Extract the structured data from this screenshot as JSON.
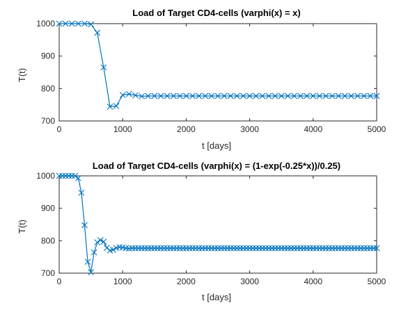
{
  "chart_data": [
    {
      "type": "line",
      "title": "Load of Target CD4-cells (varphi(x) = x)",
      "xlabel": "t [days]",
      "ylabel": "T(t)",
      "xlim": [
        0,
        5000
      ],
      "ylim": [
        700,
        1000
      ],
      "xticks": [
        0,
        1000,
        2000,
        3000,
        4000,
        5000
      ],
      "yticks": [
        700,
        800,
        900,
        1000
      ],
      "grid": false,
      "legend": "none",
      "color": "#0072BD",
      "series": [
        {
          "marker": "x",
          "x": [
            0,
            100,
            200,
            300,
            400,
            500,
            600,
            700,
            800,
            900,
            1000,
            1100,
            1200,
            1300,
            1400,
            1500,
            1600,
            1700,
            1800,
            1900,
            2000,
            2100,
            2200,
            2300,
            2400,
            2500,
            2600,
            2700,
            2800,
            2900,
            3000,
            3100,
            3200,
            3300,
            3400,
            3500,
            3600,
            3700,
            3800,
            3900,
            4000,
            4100,
            4200,
            4300,
            4400,
            4500,
            4600,
            4700,
            4800,
            4900,
            5000
          ],
          "y": [
            1000,
            1000,
            1000,
            1000,
            1000,
            998,
            972,
            865,
            744,
            746,
            780,
            783,
            779,
            776,
            777,
            777,
            777,
            777,
            777,
            777,
            777,
            777,
            777,
            777,
            777,
            777,
            777,
            777,
            777,
            777,
            777,
            777,
            777,
            777,
            777,
            777,
            777,
            777,
            777,
            777,
            777,
            777,
            777,
            777,
            777,
            777,
            777,
            777,
            777,
            777,
            777
          ]
        }
      ]
    },
    {
      "type": "line",
      "title": "Load of Target CD4-cells (varphi(x) = (1-exp(-0.25*x))/0.25)",
      "xlabel": "t [days]",
      "ylabel": "T(t)",
      "xlim": [
        0,
        5000
      ],
      "ylim": [
        700,
        1000
      ],
      "xticks": [
        0,
        1000,
        2000,
        3000,
        4000,
        5000
      ],
      "yticks": [
        700,
        800,
        900,
        1000
      ],
      "grid": false,
      "legend": "none",
      "color": "#0072BD",
      "series": [
        {
          "marker": "x",
          "x": [
            0,
            50,
            100,
            150,
            200,
            250,
            300,
            350,
            400,
            450,
            500,
            550,
            600,
            650,
            700,
            750,
            800,
            850,
            900,
            950,
            1000,
            1050,
            1100,
            1150,
            1200,
            1250,
            1300,
            1350,
            1400,
            1450,
            1500,
            1550,
            1600,
            1650,
            1700,
            1750,
            1800,
            1850,
            1900,
            1950,
            2000,
            2050,
            2100,
            2150,
            2200,
            2250,
            2300,
            2350,
            2400,
            2450,
            2500,
            2550,
            2600,
            2650,
            2700,
            2750,
            2800,
            2850,
            2900,
            2950,
            3000,
            3050,
            3100,
            3150,
            3200,
            3250,
            3300,
            3350,
            3400,
            3450,
            3500,
            3550,
            3600,
            3650,
            3700,
            3750,
            3800,
            3850,
            3900,
            3950,
            4000,
            4050,
            4100,
            4150,
            4200,
            4250,
            4300,
            4350,
            4400,
            4450,
            4500,
            4550,
            4600,
            4650,
            4700,
            4750,
            4800,
            4850,
            4900,
            4950,
            5000
          ],
          "y": [
            1000,
            1000,
            1000,
            1000,
            1000,
            1000,
            993,
            948,
            848,
            735,
            703,
            764,
            795,
            802,
            797,
            778,
            770,
            772,
            778,
            780,
            779,
            777,
            776,
            777,
            777,
            777,
            777,
            777,
            777,
            777,
            777,
            777,
            777,
            777,
            777,
            777,
            777,
            777,
            777,
            777,
            777,
            777,
            777,
            777,
            777,
            777,
            777,
            777,
            777,
            777,
            777,
            777,
            777,
            777,
            777,
            777,
            777,
            777,
            777,
            777,
            777,
            777,
            777,
            777,
            777,
            777,
            777,
            777,
            777,
            777,
            777,
            777,
            777,
            777,
            777,
            777,
            777,
            777,
            777,
            777,
            777,
            777,
            777,
            777,
            777,
            777,
            777,
            777,
            777,
            777,
            777,
            777,
            777,
            777,
            777,
            777,
            777,
            777,
            777,
            777,
            777
          ]
        }
      ]
    }
  ]
}
